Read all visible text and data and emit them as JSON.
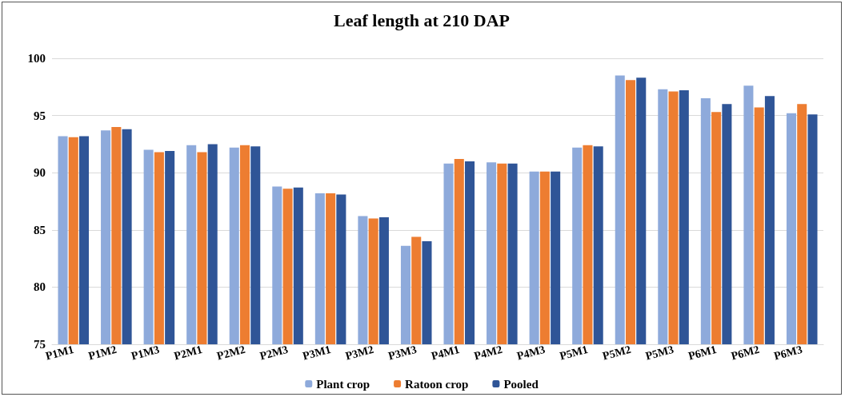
{
  "chart_data": {
    "type": "bar",
    "title": "Leaf length at 210 DAP",
    "categories": [
      "P1M1",
      "P1M2",
      "P1M3",
      "P2M1",
      "P2M2",
      "P2M3",
      "P3M1",
      "P3M2",
      "P3M3",
      "P4M1",
      "P4M2",
      "P4M3",
      "P5M1",
      "P5M2",
      "P5M3",
      "P6M1",
      "P6M2",
      "P6M3"
    ],
    "series": [
      {
        "name": "Plant crop",
        "color": "#8eaadb",
        "values": [
          93.2,
          93.7,
          92.0,
          92.4,
          92.2,
          88.8,
          88.2,
          86.2,
          83.6,
          90.8,
          90.9,
          90.1,
          92.2,
          98.5,
          97.3,
          96.5,
          97.6,
          95.2
        ]
      },
      {
        "name": "Ratoon crop",
        "color": "#ed7d31",
        "values": [
          93.1,
          94.0,
          91.8,
          91.8,
          92.4,
          88.6,
          88.2,
          86.0,
          84.4,
          91.2,
          90.8,
          90.1,
          92.4,
          98.1,
          97.1,
          95.3,
          95.7,
          96.0
        ]
      },
      {
        "name": "Pooled",
        "color": "#2f5597",
        "values": [
          93.2,
          93.8,
          91.9,
          92.5,
          92.3,
          88.7,
          88.1,
          86.1,
          84.0,
          91.0,
          90.8,
          90.1,
          92.3,
          98.3,
          97.2,
          96.0,
          96.7,
          95.1
        ]
      }
    ],
    "ylim": [
      75,
      100
    ],
    "yticks": [
      75,
      80,
      85,
      90,
      95,
      100
    ],
    "grid": "y",
    "legend": "bottom"
  }
}
